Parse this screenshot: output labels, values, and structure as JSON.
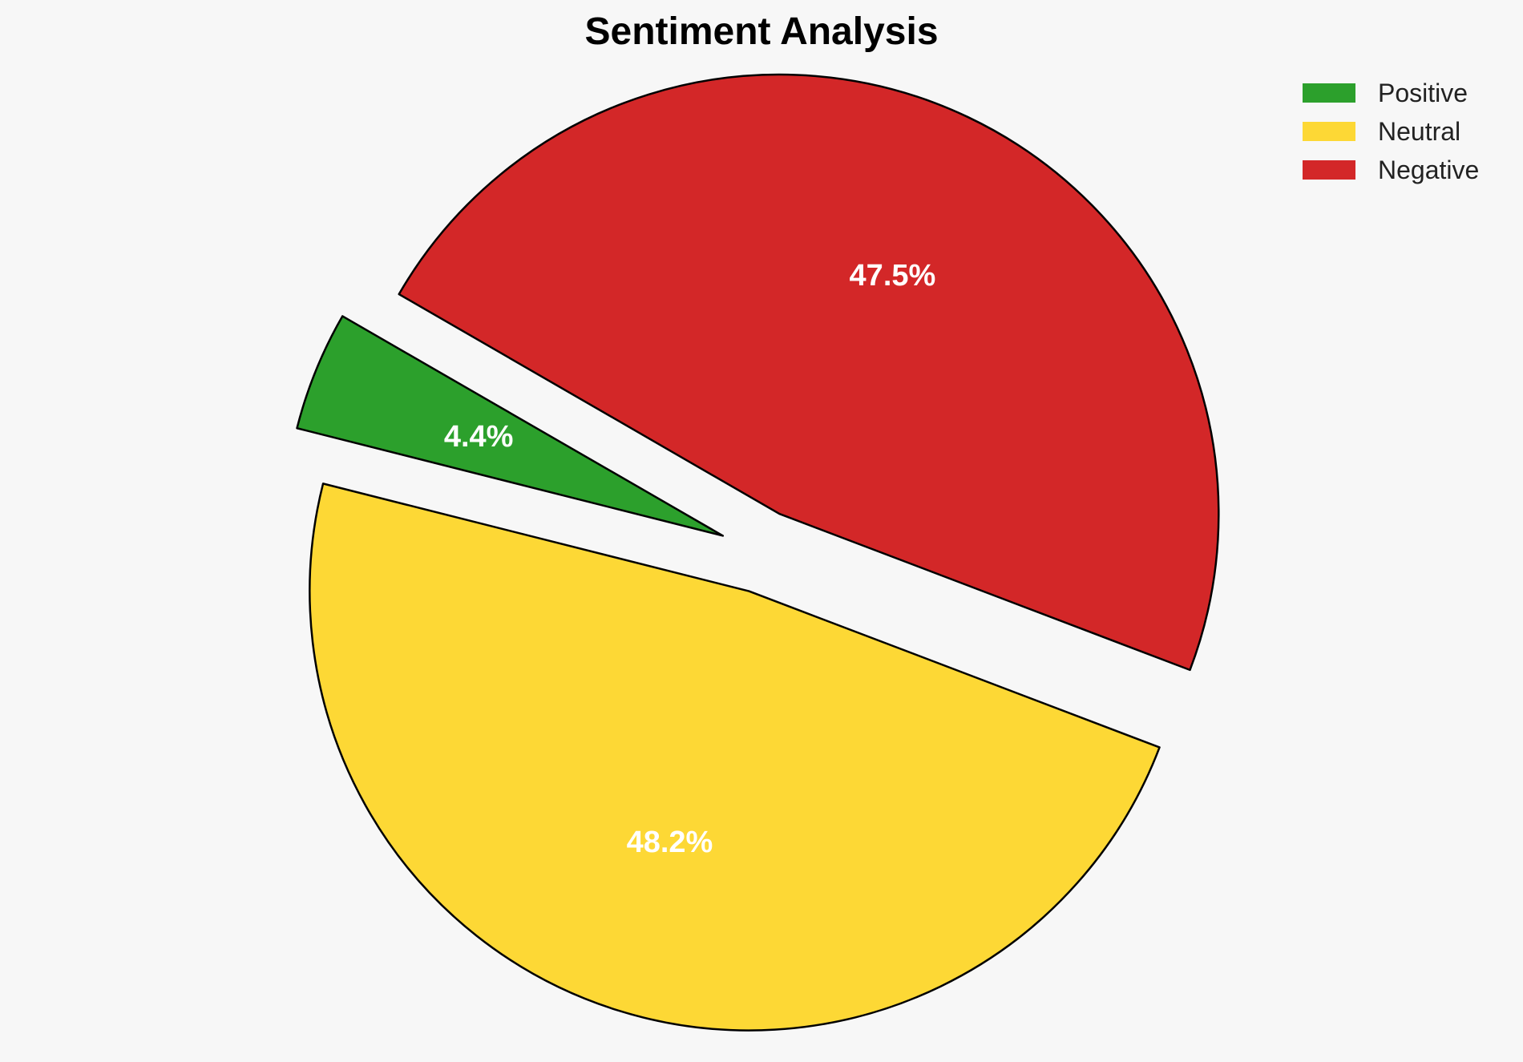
{
  "chart_data": {
    "type": "pie",
    "title": "Sentiment Analysis",
    "slices": [
      {
        "label": "Positive",
        "value": 4.4,
        "display": "4.4%",
        "color": "#2ca02c",
        "exploded": true
      },
      {
        "label": "Neutral",
        "value": 48.2,
        "display": "48.2%",
        "color": "#fdd835",
        "exploded": true
      },
      {
        "label": "Negative",
        "value": 47.5,
        "display": "47.5%",
        "color": "#d32728",
        "exploded": true
      }
    ],
    "start_angle_deg": 150,
    "direction": "counterclockwise",
    "legend_position": "top-right",
    "edge_color": "#000000"
  }
}
